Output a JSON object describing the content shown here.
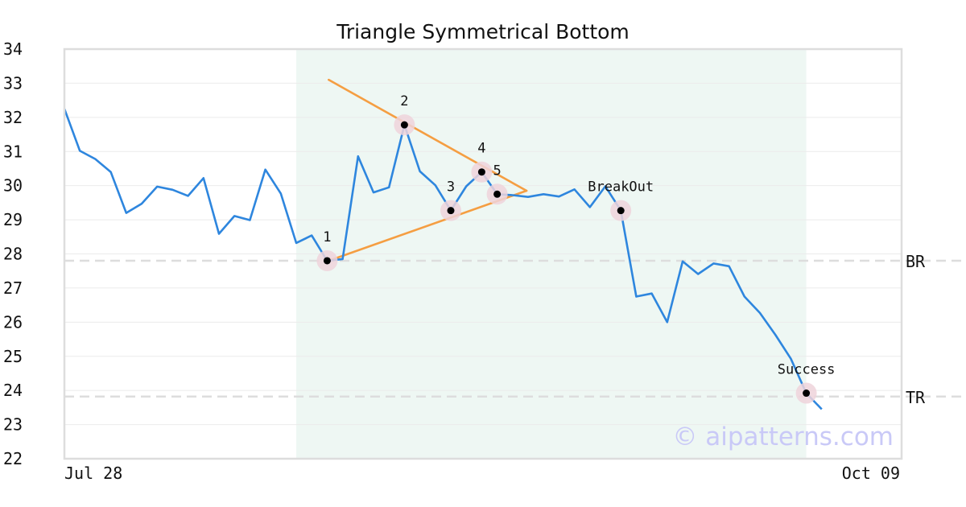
{
  "watermark": "© aipatterns.com",
  "colors": {
    "price_line": "#2e86de",
    "trend_lines": "#f59e42",
    "pattern_band": "#eef7f3",
    "ref_lines": "#dddddd",
    "marker_halo": "#efd3da",
    "marker_dot": "#000000",
    "watermark": "#c9c9f7"
  },
  "chart_data": {
    "type": "line",
    "title": "Triangle Symmetrical Bottom",
    "xlabel": "",
    "ylabel": "",
    "ylim": [
      22,
      34
    ],
    "yticks": [
      22,
      23,
      24,
      25,
      26,
      27,
      28,
      29,
      30,
      31,
      32,
      33,
      34
    ],
    "x_tick_labels": [
      "Jul 28",
      "Oct 09"
    ],
    "grid": true,
    "series": [
      {
        "values": [
          32.25,
          31.02,
          30.78,
          30.4,
          29.2,
          29.47,
          29.97,
          29.88,
          29.7,
          30.22,
          28.59,
          29.11,
          28.99,
          30.47,
          29.77,
          28.32,
          28.54,
          27.8,
          27.85,
          30.86,
          29.8,
          29.95,
          31.78,
          30.42,
          30.01,
          29.27,
          29.98,
          30.4,
          29.75,
          29.72,
          29.67,
          29.75,
          29.68,
          29.89,
          29.37,
          29.98,
          29.27,
          26.75,
          26.84,
          26.0,
          27.78,
          27.41,
          27.72,
          27.64,
          26.75,
          26.27,
          25.63,
          24.93,
          23.92,
          23.45
        ]
      }
    ],
    "pattern_region": {
      "start_index": 15,
      "end_index": 48
    },
    "trend_lines": [
      {
        "from": {
          "index": 17.1,
          "value": 33.1
        },
        "to": {
          "index": 29.9,
          "value": 29.85
        }
      },
      {
        "from": {
          "index": 17.1,
          "value": 27.8
        },
        "to": {
          "index": 29.9,
          "value": 29.85
        }
      }
    ],
    "points": [
      {
        "label": "1",
        "index": 17,
        "value": 27.8
      },
      {
        "label": "2",
        "index": 22,
        "value": 31.78
      },
      {
        "label": "3",
        "index": 25,
        "value": 29.27
      },
      {
        "label": "4",
        "index": 27,
        "value": 30.4
      },
      {
        "label": "5",
        "index": 28,
        "value": 29.75
      },
      {
        "label": "BreakOut",
        "index": 36,
        "value": 29.27
      },
      {
        "label": "Success",
        "index": 48,
        "value": 23.92
      }
    ],
    "reference_lines": [
      {
        "label": "BR",
        "value": 27.8
      },
      {
        "label": "TR",
        "value": 23.82
      }
    ]
  }
}
